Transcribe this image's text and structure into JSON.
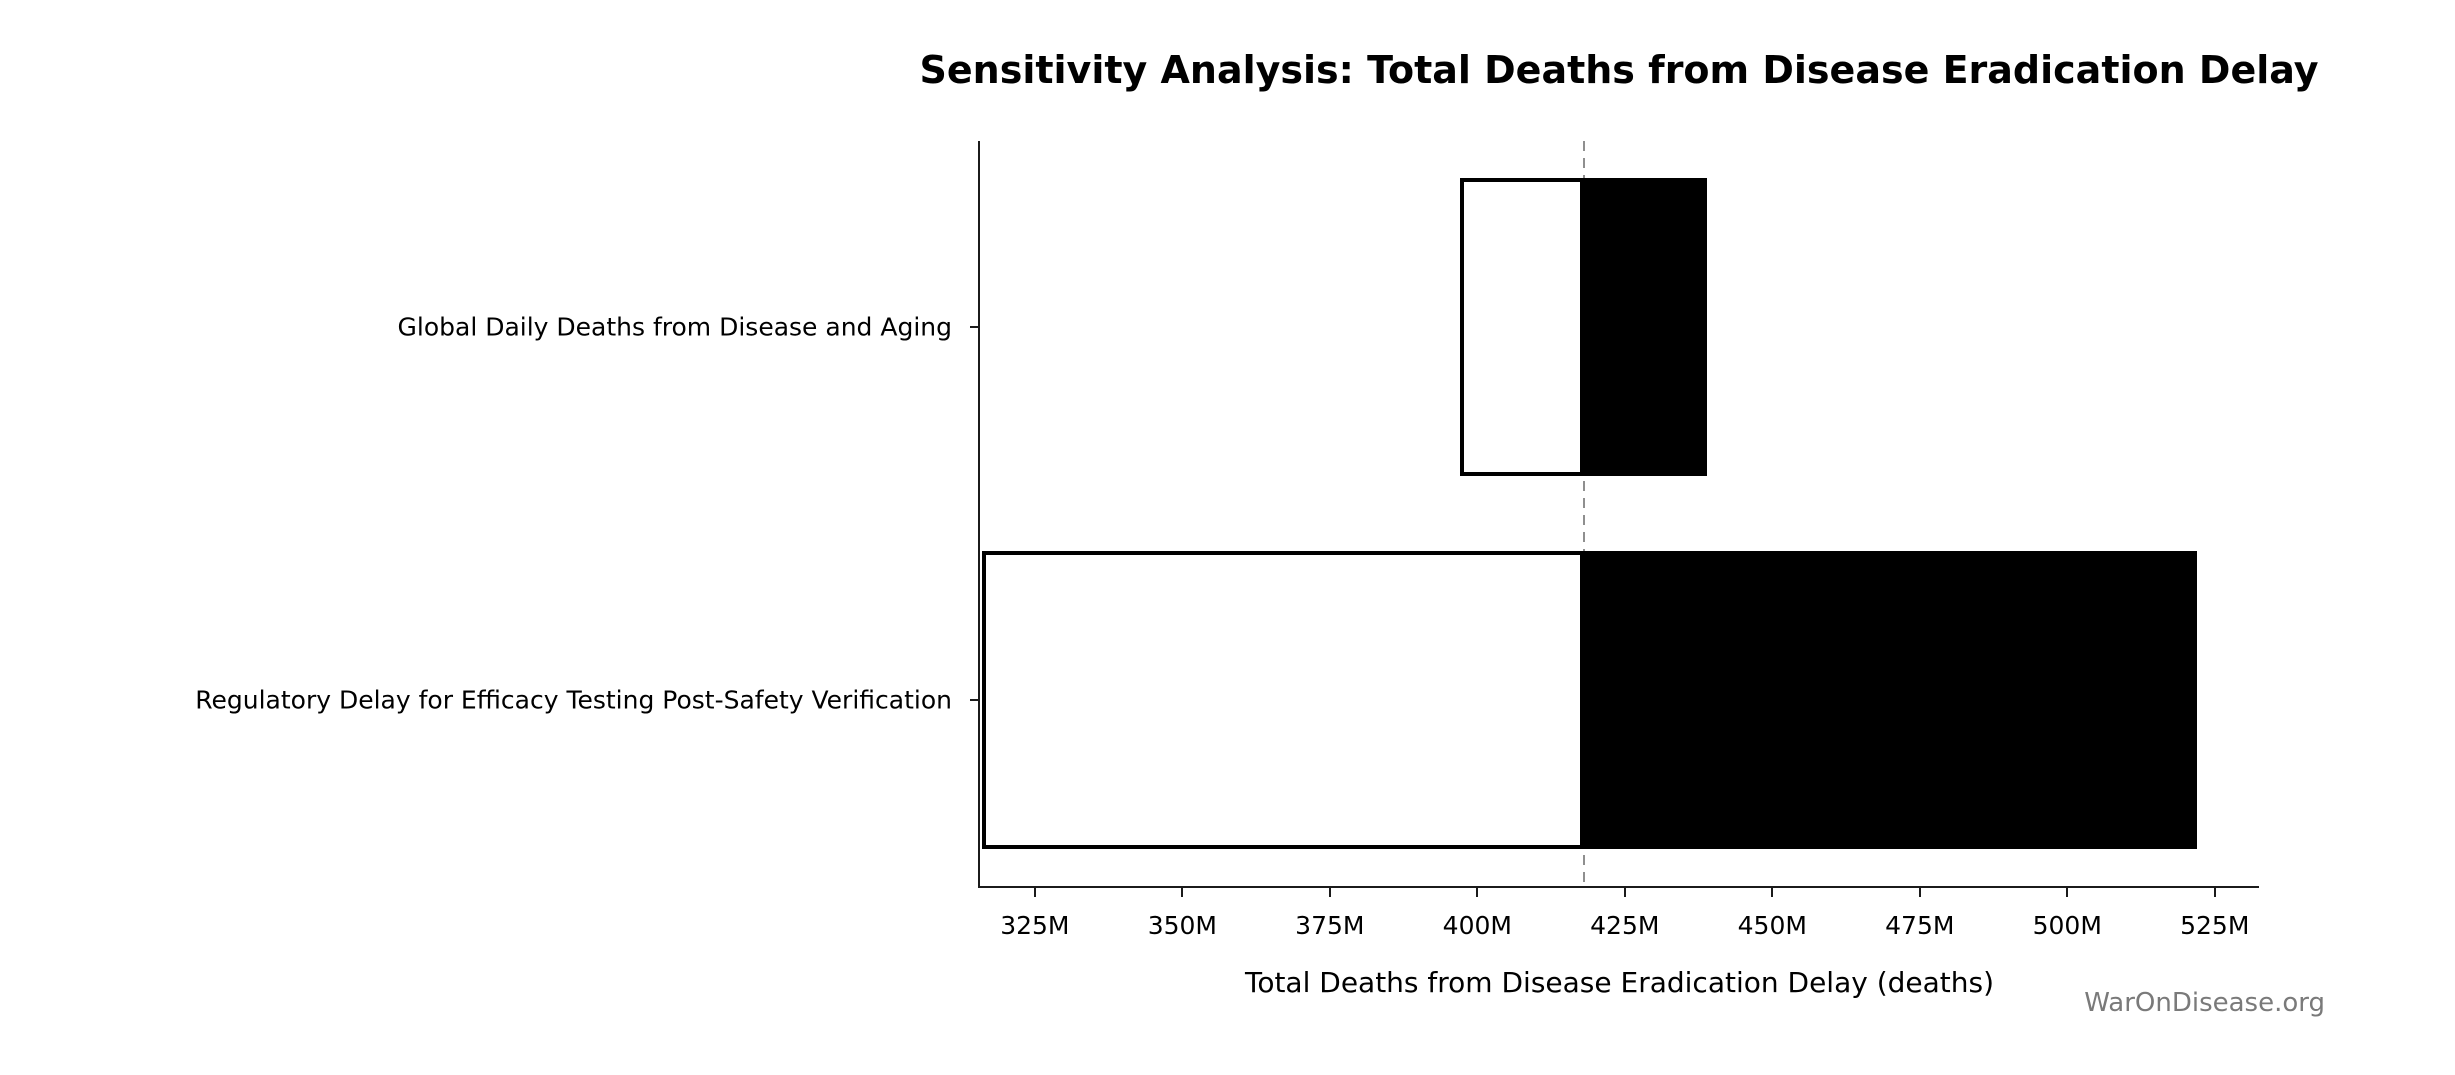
{
  "chart_data": {
    "type": "bar",
    "variant": "tornado-horizontal",
    "title": "Sensitivity Analysis: Total Deaths from Disease Eradication Delay",
    "xlabel": "Total Deaths from Disease Eradication Delay (deaths)",
    "watermark": "WarOnDisease.org",
    "baseline_value_millions": 418,
    "axis": {
      "x_min_millions": 315.7,
      "x_max_millions": 532.5,
      "tick_values_millions": [
        325,
        350,
        375,
        400,
        425,
        450,
        475,
        500,
        525
      ],
      "tick_labels": [
        "325M",
        "350M",
        "375M",
        "400M",
        "425M",
        "450M",
        "475M",
        "500M",
        "525M"
      ],
      "grid": false,
      "legend": "none"
    },
    "bars": [
      {
        "label": "Global Daily Deaths from Disease and Aging",
        "low_millions": 397,
        "high_millions": 439
      },
      {
        "label": "Regulatory Delay for Efficacy Testing Post-Safety Verification",
        "low_millions": 316,
        "high_millions": 522
      }
    ],
    "colors": {
      "low_segment_fill": "#ffffff",
      "high_segment_fill": "#000000",
      "bar_border": "#000000",
      "baseline_line": "#8f8f8f",
      "axis_line": "#1b1b1b",
      "watermark_text": "#7a7a7a"
    }
  }
}
